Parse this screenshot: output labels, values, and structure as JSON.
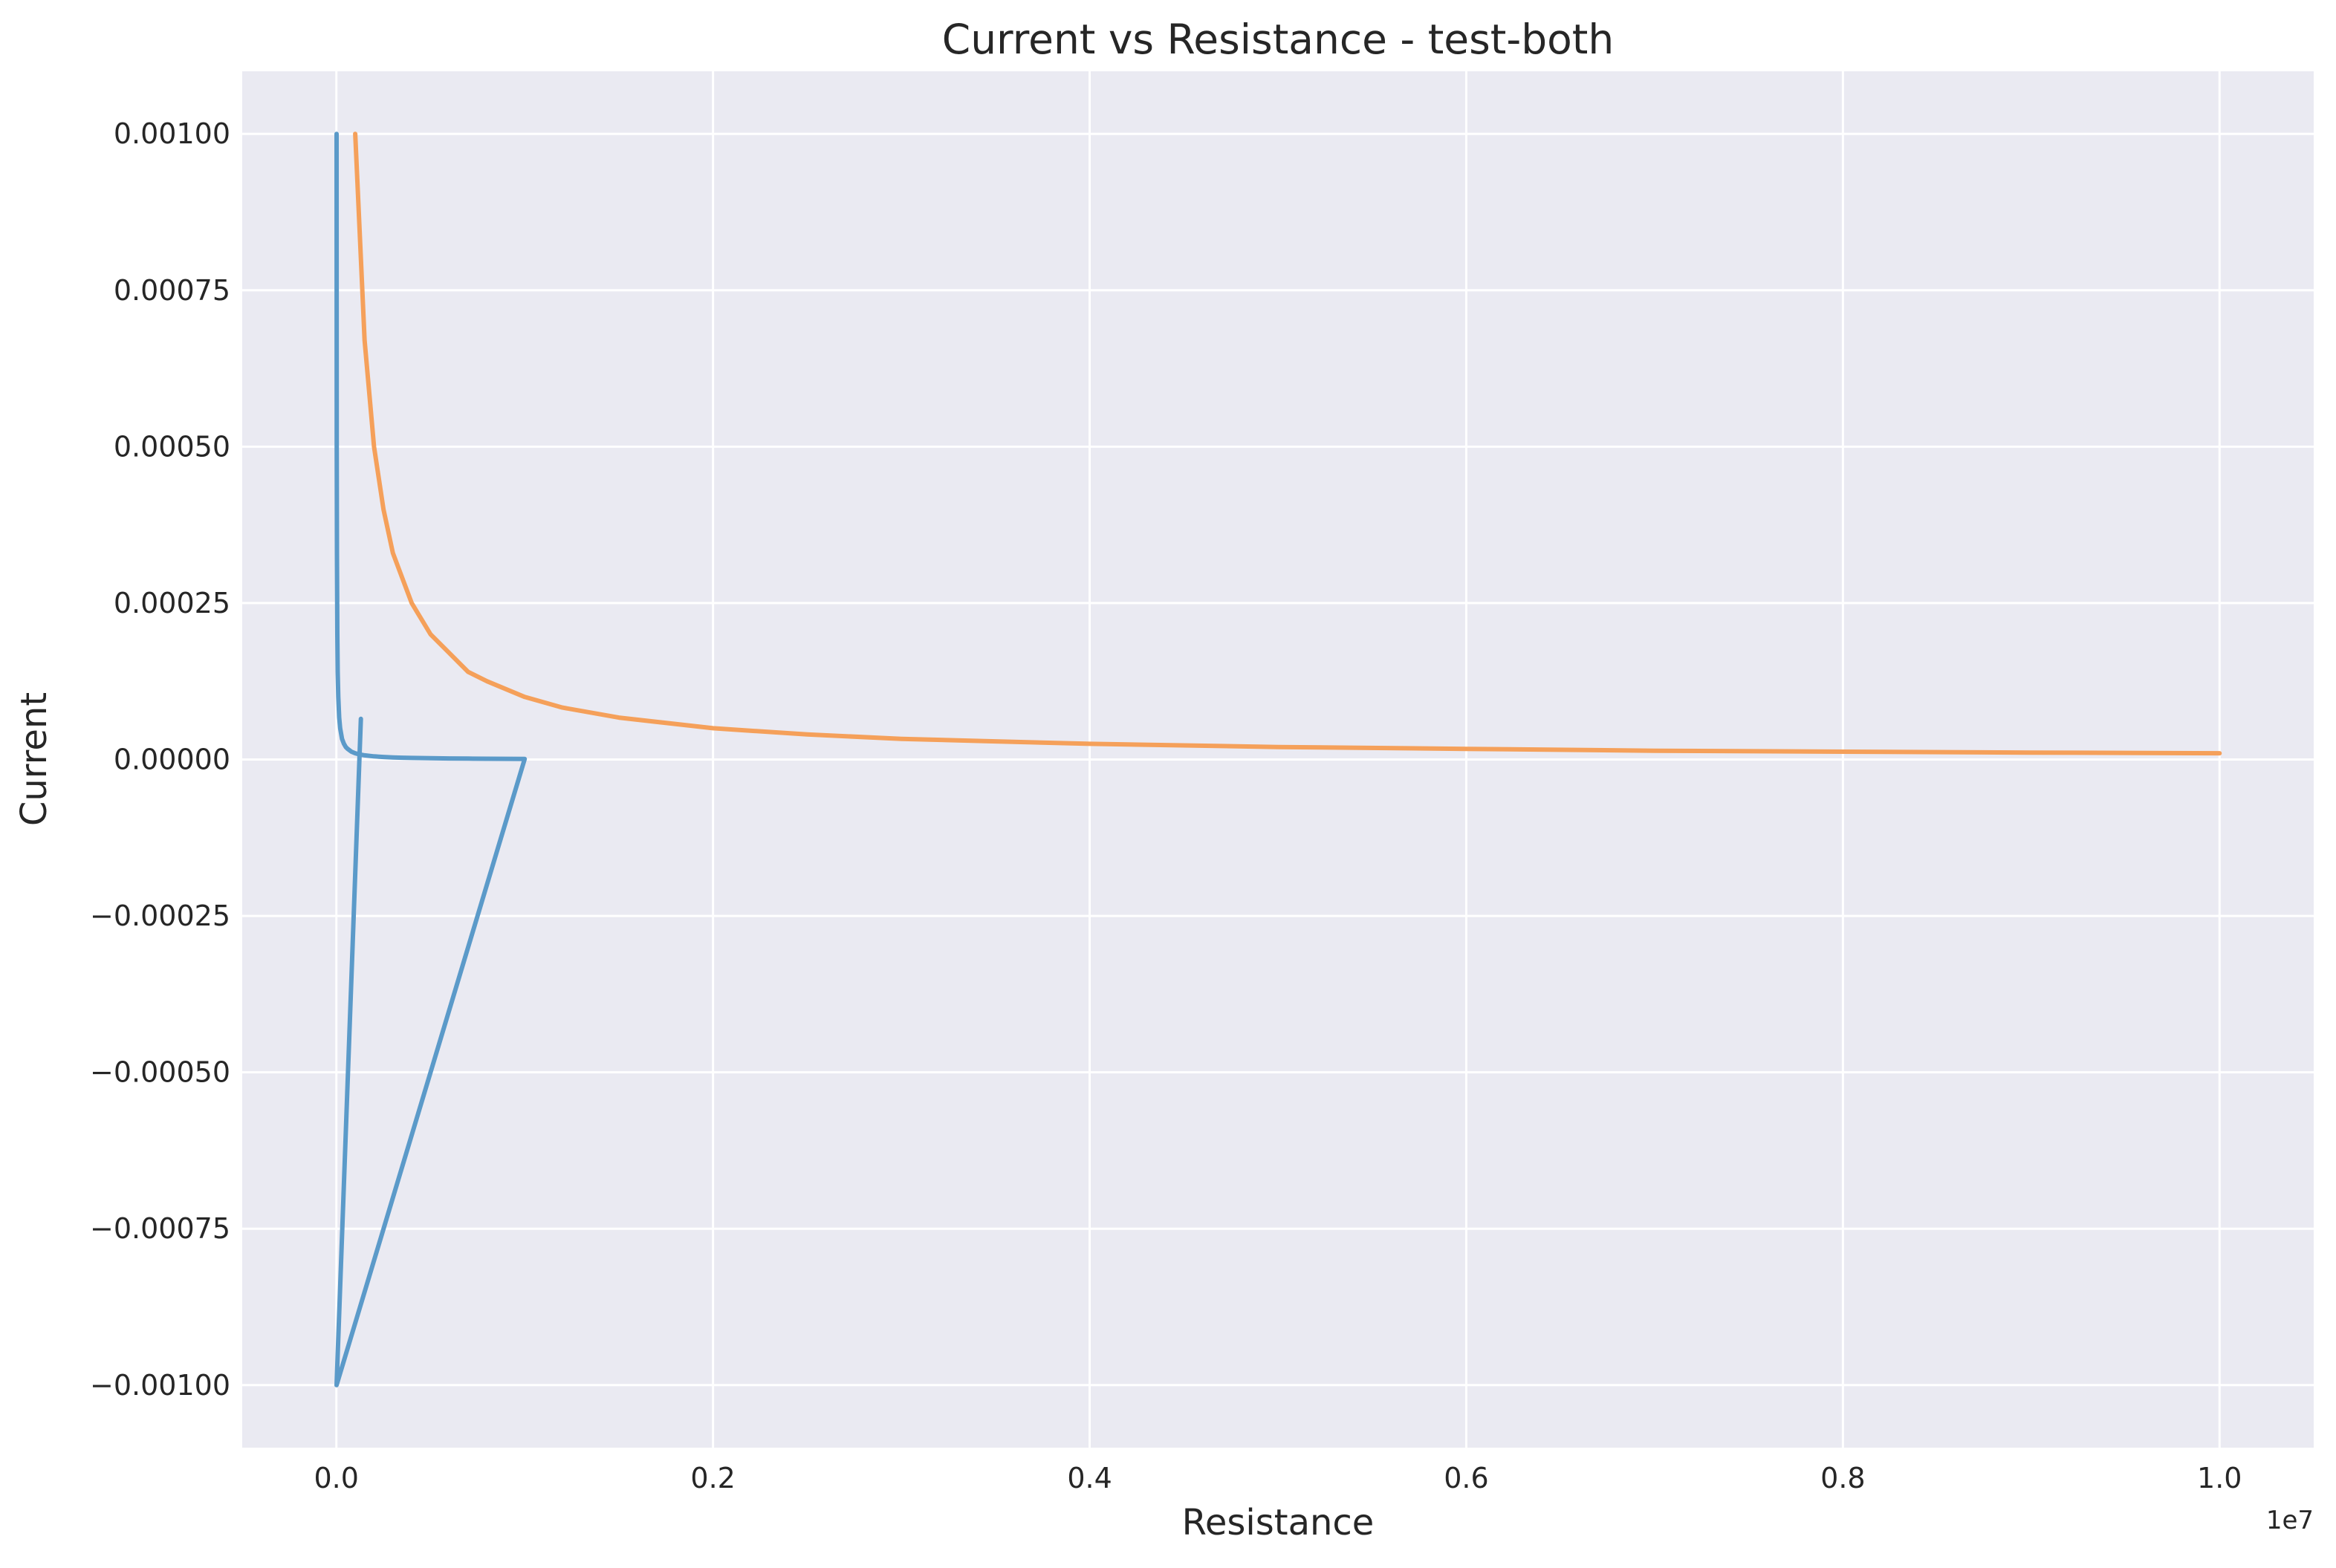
{
  "chart_data": {
    "type": "line",
    "title": "Current vs Resistance - test-both",
    "xlabel": "Resistance",
    "ylabel": "Current",
    "x_offset_label": "1e7",
    "xlim": [
      -500000,
      10500000
    ],
    "ylim": [
      -0.0011,
      0.0011
    ],
    "grid": true,
    "x_ticks": [
      0,
      2000000,
      4000000,
      6000000,
      8000000,
      10000000
    ],
    "x_tick_labels": [
      "0.0",
      "0.2",
      "0.4",
      "0.6",
      "0.8",
      "1.0"
    ],
    "y_ticks": [
      0.001,
      0.00075,
      0.0005,
      0.00025,
      0,
      -0.00025,
      -0.0005,
      -0.00075,
      -0.001
    ],
    "y_tick_labels": [
      "0.00100",
      "0.00075",
      "0.00050",
      "0.00025",
      "0.00000",
      "−0.00025",
      "−0.00050",
      "−0.00075",
      "−0.00100"
    ],
    "series": [
      {
        "color": "#5b9ac9",
        "x": [
          1000,
          1000,
          2000,
          3000,
          5000,
          7000,
          10000,
          15000,
          20000,
          30000,
          40000,
          50000,
          60000,
          80000,
          100000,
          120000,
          150000,
          200000,
          250000,
          300000,
          350000,
          400000,
          500000,
          600000,
          700000,
          800000,
          900000,
          1000000,
          1000,
          130000
        ],
        "y": [
          0.001,
          0.001,
          0.0005,
          0.00033,
          0.0002,
          0.00014,
          0.0001,
          6.7e-05,
          5e-05,
          3.3e-05,
          2.5e-05,
          2e-05,
          1.7e-05,
          1.25e-05,
          1e-05,
          8.3e-06,
          6.7e-06,
          5e-06,
          4e-06,
          3.3e-06,
          2.9e-06,
          2.5e-06,
          2e-06,
          1.7e-06,
          1.4e-06,
          1.2e-06,
          1.1e-06,
          1e-06,
          -0.001,
          6.5e-05
        ]
      },
      {
        "color": "#f5a05a",
        "x": [
          100000,
          150000,
          200000,
          250000,
          300000,
          350000,
          400000,
          500000,
          600000,
          700000,
          800000,
          1000000,
          1200000,
          1500000,
          2000000,
          2500000,
          3000000,
          3500000,
          4000000,
          5000000,
          6000000,
          7000000,
          8000000,
          9000000,
          10000000
        ],
        "y": [
          0.001,
          0.00067,
          0.0005,
          0.0004,
          0.00033,
          0.00029,
          0.00025,
          0.0002,
          0.00017,
          0.00014,
          0.000125,
          0.0001,
          8.3e-05,
          6.7e-05,
          5e-05,
          4e-05,
          3.3e-05,
          2.9e-05,
          2.5e-05,
          2e-05,
          1.7e-05,
          1.4e-05,
          1.25e-05,
          1.1e-05,
          1e-05
        ]
      }
    ]
  }
}
